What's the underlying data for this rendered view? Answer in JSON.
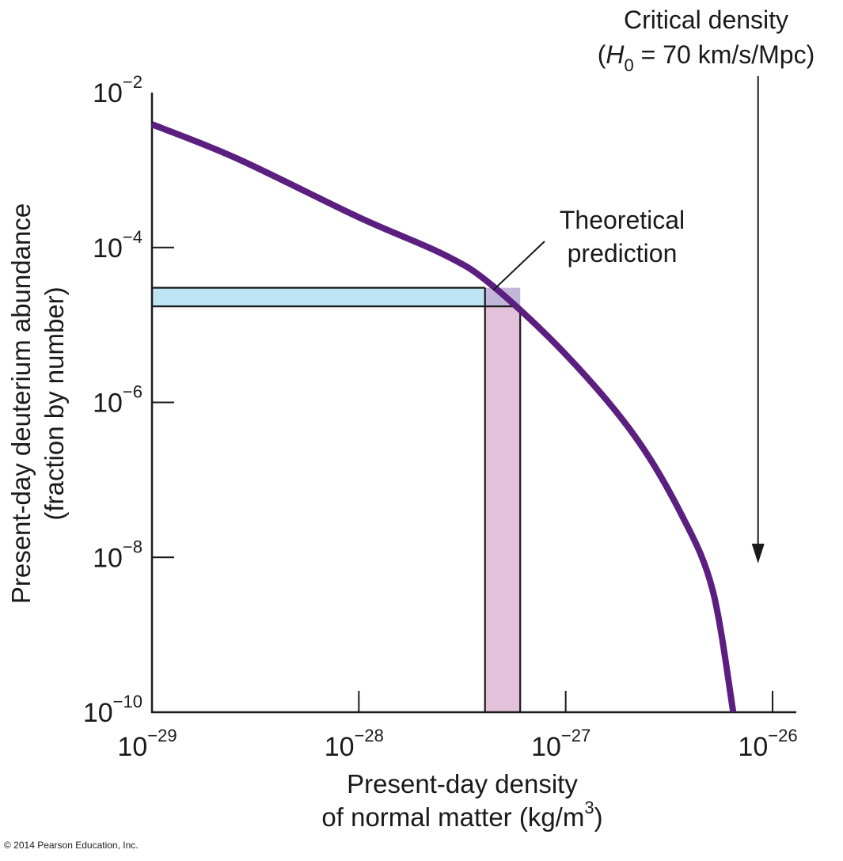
{
  "chart_data": {
    "type": "line",
    "title": "",
    "xscale": "log",
    "yscale": "log",
    "xlabel": [
      "Present-day density",
      "of normal matter (kg/m",
      "3",
      ")"
    ],
    "ylabel": [
      "Present-day deuterium abundance",
      "(fraction by number)"
    ],
    "xlim_exp": [
      -29,
      -26
    ],
    "ylim_exp": [
      -10,
      -2
    ],
    "grid": false,
    "x_ticks": [
      {
        "base": "10",
        "exp": "−29",
        "value": -29
      },
      {
        "base": "10",
        "exp": "−28",
        "value": -28
      },
      {
        "base": "10",
        "exp": "−27",
        "value": -27
      },
      {
        "base": "10",
        "exp": "−26",
        "value": -26
      }
    ],
    "y_ticks": [
      {
        "base": "10",
        "exp": "−2",
        "value": -2
      },
      {
        "base": "10",
        "exp": "−4",
        "value": -4
      },
      {
        "base": "10",
        "exp": "−6",
        "value": -6
      },
      {
        "base": "10",
        "exp": "−8",
        "value": -8
      },
      {
        "base": "10",
        "exp": "−10",
        "value": -10
      }
    ],
    "series": [
      {
        "name": "Theoretical prediction",
        "color": "#5b1f80",
        "note": "values are log10 of density (kg/m^3) and log10 of deuterium fraction",
        "x": [
          -29.0,
          -28.59,
          -28.0,
          -27.59,
          -27.36,
          -27.0,
          -26.67,
          -26.44,
          -26.29,
          -26.19
        ],
        "y": [
          -2.41,
          -2.85,
          -3.61,
          -4.09,
          -4.48,
          -5.38,
          -6.42,
          -7.45,
          -8.42,
          -10.0
        ]
      }
    ],
    "bands": [
      {
        "name": "observed-deuterium-band",
        "orientation": "horizontal",
        "color": "#bde3f4",
        "y_exp_range": [
          -4.76,
          -4.52
        ],
        "x_exp_end": -27.39
      },
      {
        "name": "inferred-density-band",
        "orientation": "vertical",
        "color": "#e3c1db",
        "x_exp_range": [
          -27.39,
          -27.22
        ],
        "y_exp_end": -4.52
      },
      {
        "name": "overlap",
        "color": "#c3b7d9"
      }
    ],
    "annotations": [
      {
        "name": "theoretical-prediction-label",
        "lines": [
          "Theoretical",
          "prediction"
        ],
        "points_to": {
          "x_exp": -27.35,
          "y_exp": -4.55
        }
      },
      {
        "name": "critical-density-label",
        "lines": [
          "Critical density",
          "(H",
          "0",
          " = 70 km/s/Mpc)"
        ],
        "arrow_x_exp": -26.07
      }
    ]
  },
  "footer": {
    "copyright": "© 2014 Pearson Education, Inc."
  },
  "colors": {
    "curve": "#5b1f80",
    "axis": "#1a1a1a",
    "blue_band": "#bde3f4",
    "pink_band": "#e3c1db",
    "overlap": "#c3b7d9"
  }
}
